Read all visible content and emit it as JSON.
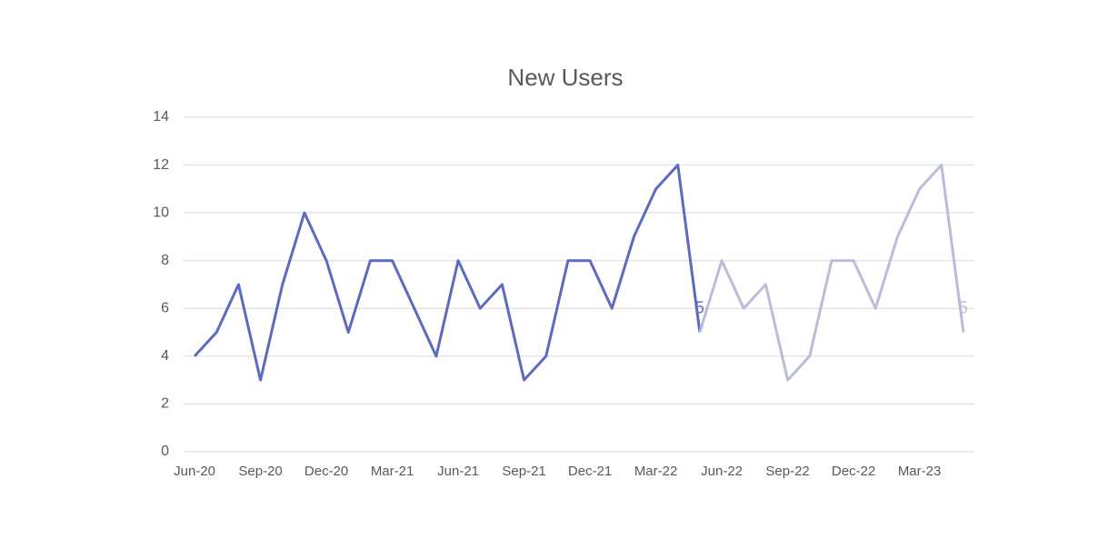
{
  "chart_data": {
    "type": "line",
    "title": "New Users",
    "categories": [
      "Jun-20",
      null,
      null,
      "Sep-20",
      null,
      null,
      "Dec-20",
      null,
      null,
      "Mar-21",
      null,
      null,
      "Jun-21",
      null,
      null,
      "Sep-21",
      null,
      null,
      "Dec-21",
      null,
      null,
      "Mar-22",
      null,
      null,
      "Jun-22",
      null,
      null,
      "Sep-22",
      null,
      null,
      "Dec-22",
      null,
      null,
      "Mar-23",
      null,
      null
    ],
    "series": [
      {
        "color": "#5b6bbf",
        "values": [
          4,
          5,
          7,
          3,
          7,
          10,
          8,
          5,
          8,
          8,
          6,
          4,
          8,
          6,
          7,
          3,
          4,
          8,
          8,
          6,
          9,
          11,
          12,
          5,
          null,
          null,
          null,
          null,
          null,
          null,
          null,
          null,
          null,
          null,
          null,
          null
        ],
        "value_labels": [
          null,
          null,
          null,
          null,
          null,
          null,
          null,
          null,
          null,
          null,
          null,
          null,
          null,
          null,
          null,
          null,
          null,
          null,
          null,
          null,
          null,
          null,
          null,
          "5",
          null,
          null,
          null,
          null,
          null,
          null,
          null,
          null,
          null,
          null,
          null,
          null
        ]
      },
      {
        "color": "#b9bdd9",
        "values": [
          null,
          null,
          null,
          null,
          null,
          null,
          null,
          null,
          null,
          null,
          null,
          null,
          null,
          null,
          null,
          null,
          null,
          null,
          null,
          null,
          null,
          null,
          null,
          5,
          8,
          6,
          7,
          3,
          4,
          8,
          8,
          6,
          9,
          11,
          12,
          5
        ],
        "value_labels": [
          null,
          null,
          null,
          null,
          null,
          null,
          null,
          null,
          null,
          null,
          null,
          null,
          null,
          null,
          null,
          null,
          null,
          null,
          null,
          null,
          null,
          null,
          null,
          null,
          null,
          null,
          null,
          null,
          null,
          null,
          null,
          null,
          null,
          null,
          null,
          "5"
        ]
      }
    ],
    "ylim": [
      0,
      14
    ],
    "yticks": [
      0,
      2,
      4,
      6,
      8,
      10,
      12,
      14
    ],
    "grid": true
  }
}
